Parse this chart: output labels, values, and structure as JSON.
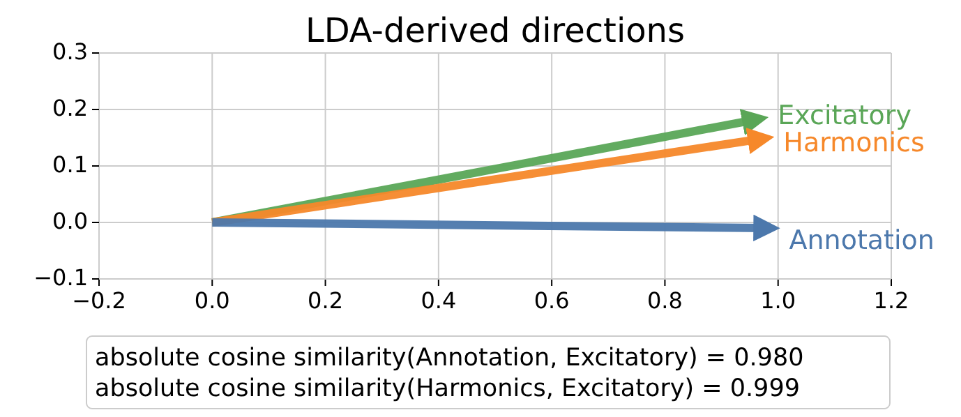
{
  "chart_data": {
    "type": "line",
    "title": "LDA-derived directions",
    "series": [
      {
        "name": "Excitatory",
        "color": "#5aa657",
        "x": [
          0,
          0.96
        ],
        "values": [
          0,
          0.182
        ]
      },
      {
        "name": "Harmonics",
        "color": "#f6882a",
        "x": [
          0,
          0.97
        ],
        "values": [
          0,
          0.148
        ]
      },
      {
        "name": "Annotation",
        "color": "#4c78ac",
        "x": [
          0,
          0.98
        ],
        "values": [
          0,
          -0.01
        ]
      }
    ],
    "xlim": [
      -0.2,
      1.2
    ],
    "xticks": [
      {
        "value": -0.2,
        "label": "−0.2"
      },
      {
        "value": 0,
        "label": "0.0"
      },
      0.2,
      0.4,
      0.6,
      0.8,
      {
        "value": 1,
        "label": "1.0"
      },
      1.2
    ],
    "ylim": [
      -0.1,
      0.3
    ],
    "yticks": [
      {
        "value": -0.1,
        "label": "−0.1"
      },
      {
        "value": 0,
        "label": "0.0"
      },
      0.1,
      0.2,
      0.3
    ],
    "grid": true,
    "marker": "none",
    "line_style": "solid",
    "annotations": [
      "absolute cosine similarity(Annotation, Excitatory) = 0.980",
      "absolute cosine similarity(Harmonics, Excitatory) = 0.999"
    ]
  }
}
